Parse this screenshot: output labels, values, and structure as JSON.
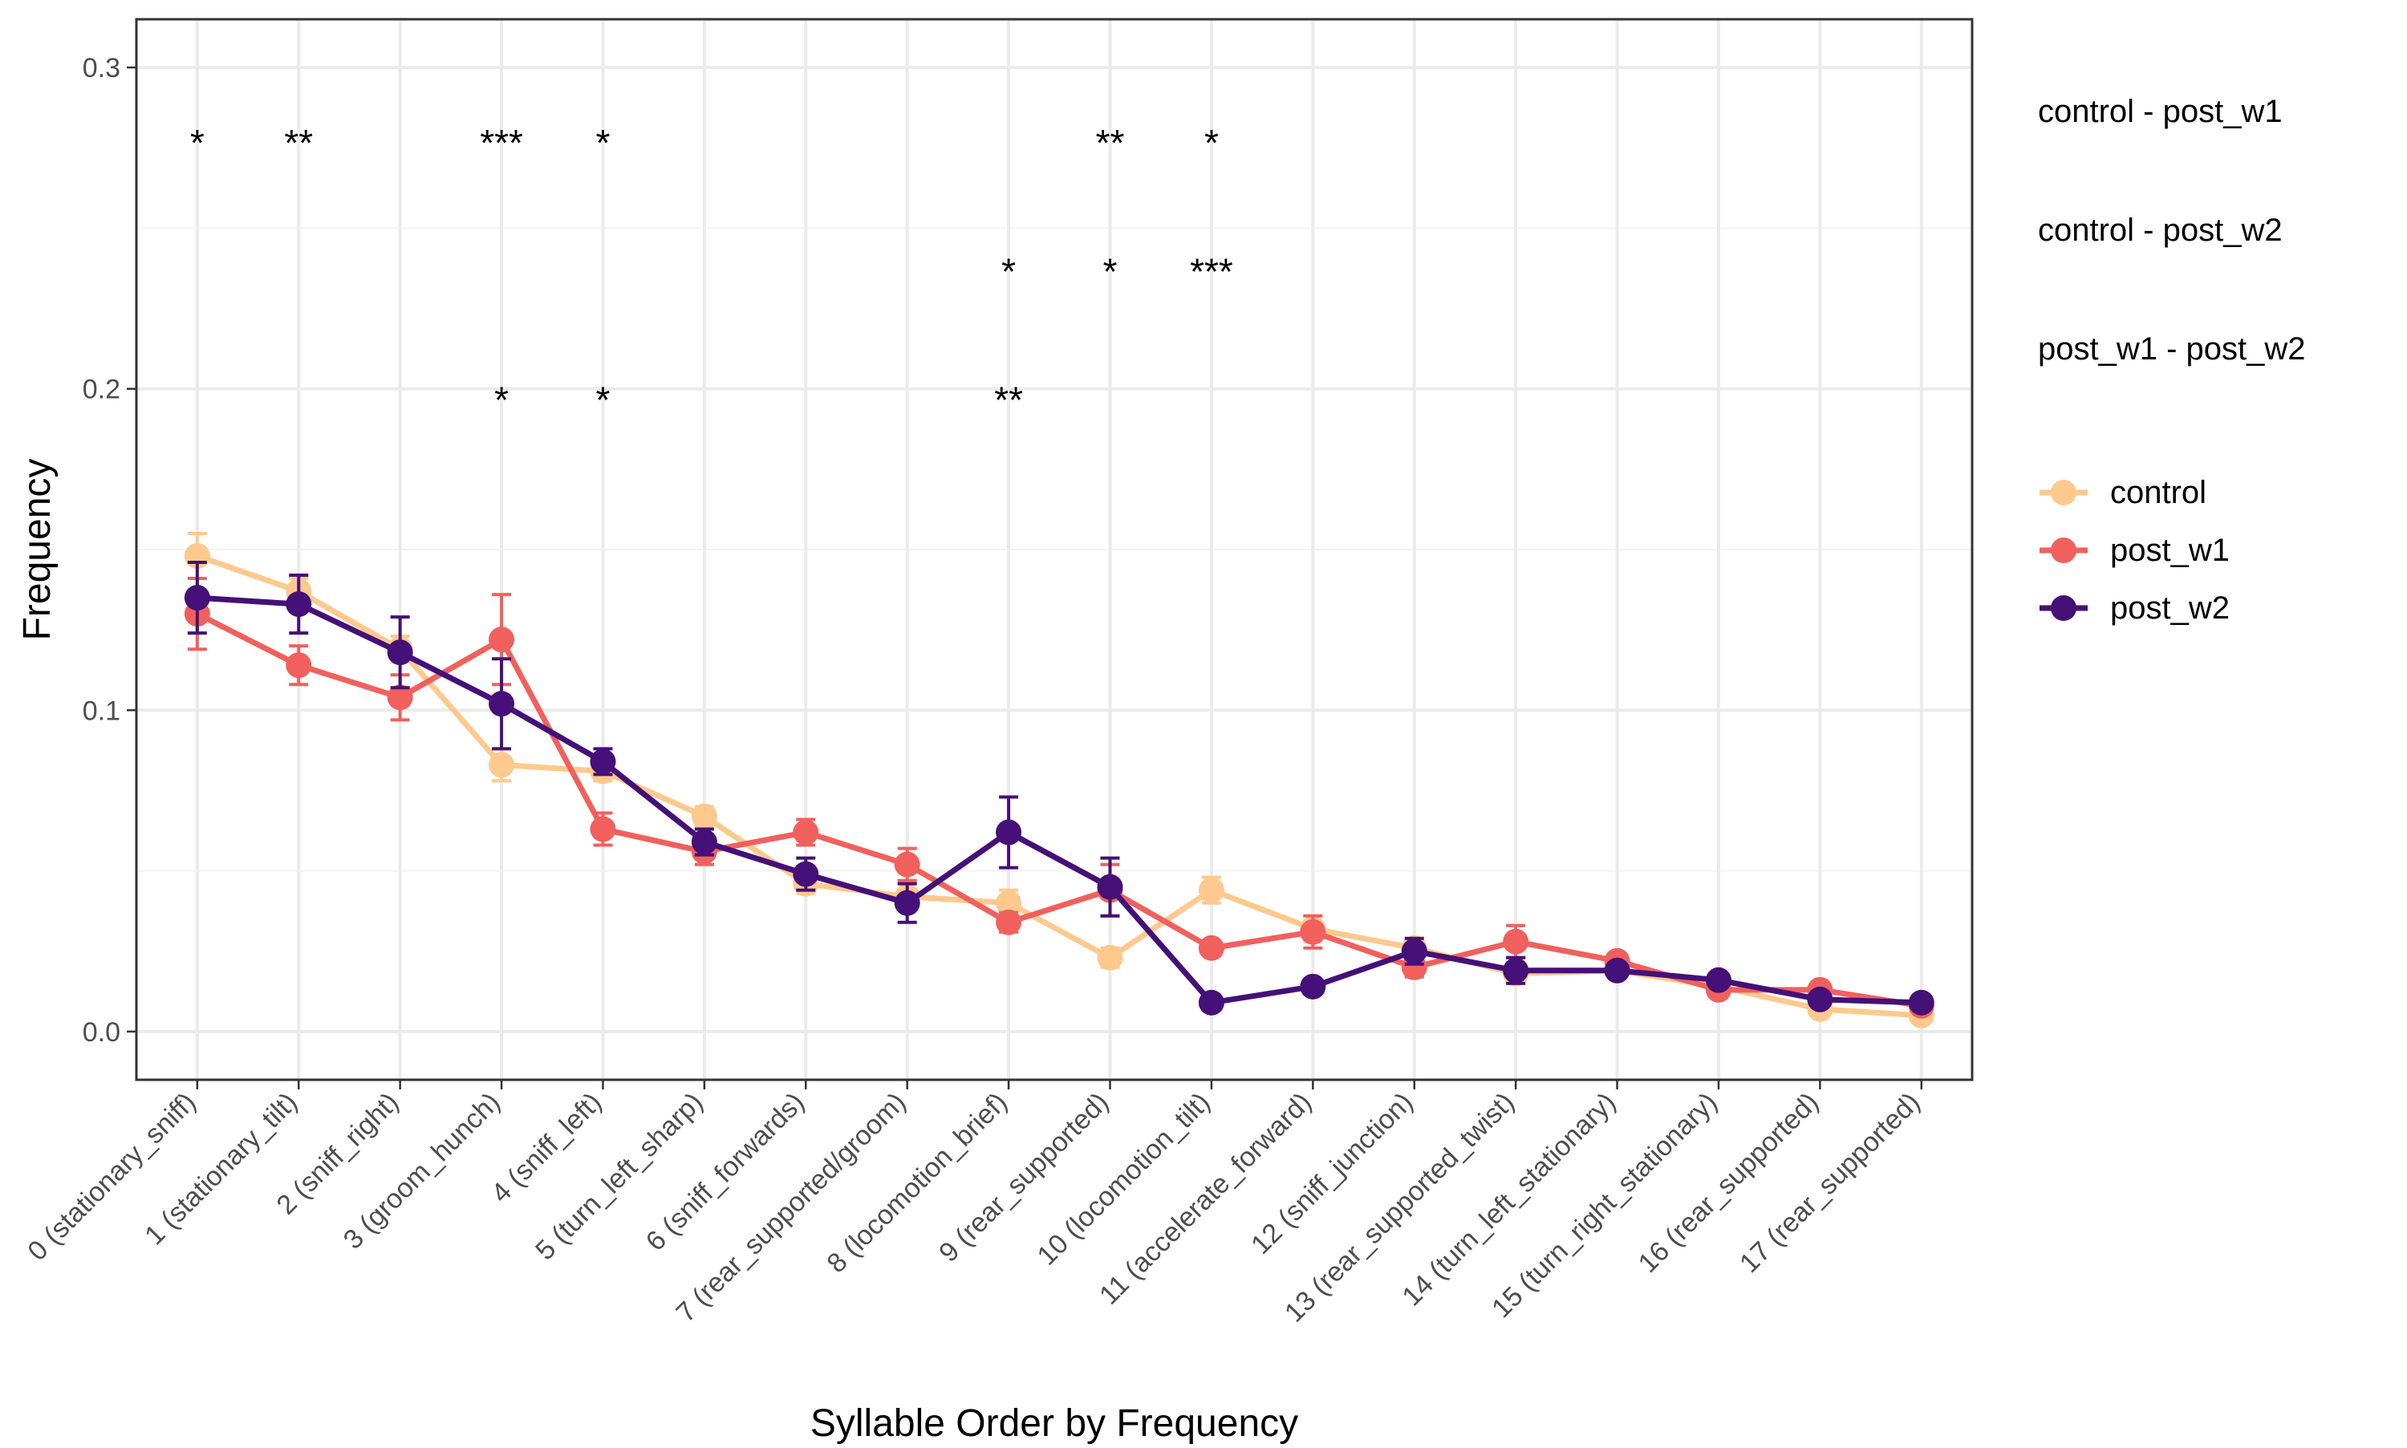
{
  "chart_data": {
    "type": "line",
    "title": "",
    "xlabel": "Syllable Order by Frequency",
    "ylabel": "Frequency",
    "ylim": [
      -0.015,
      0.315
    ],
    "yticks": [
      0.0,
      0.1,
      0.2,
      0.3
    ],
    "ytick_labels": [
      "0.0",
      "0.1",
      "0.2",
      "0.3"
    ],
    "grid": true,
    "legend_position": "right",
    "categories": [
      "0 (stationary_sniff)",
      "1 (stationary_tilt)",
      "2 (sniff_right)",
      "3 (groom_hunch)",
      "4 (sniff_left)",
      "5 (turn_left_sharp)",
      "6 (sniff_forwards)",
      "7 (rear_supported/groom)",
      "8 (locomotion_brief)",
      "9 (rear_supported)",
      "10 (locomotion_tilt)",
      "11 (accelerate_forward)",
      "12 (sniff_junction)",
      "13 (rear_supported_twist)",
      "14 (turn_left_stationary)",
      "15 (turn_right_stationary)",
      "16 (rear_supported)",
      "17 (rear_supported)"
    ],
    "series": [
      {
        "name": "control",
        "color": "#FEC98D",
        "values": [
          0.148,
          0.137,
          0.119,
          0.083,
          0.081,
          0.067,
          0.046,
          0.042,
          0.04,
          0.023,
          0.044,
          0.032,
          0.026,
          0.018,
          0.019,
          0.014,
          0.007,
          0.005
        ],
        "err": [
          0.007,
          0.004,
          0.004,
          0.005,
          0.003,
          0.003,
          0.003,
          0.002,
          0.004,
          0.003,
          0.004,
          0.004,
          0.002,
          0.002,
          0.001,
          0.001,
          0.002,
          0.001
        ]
      },
      {
        "name": "post_w1",
        "color": "#F1605D",
        "values": [
          0.13,
          0.114,
          0.104,
          0.122,
          0.063,
          0.056,
          0.062,
          0.052,
          0.034,
          0.044,
          0.026,
          0.031,
          0.02,
          0.028,
          0.022,
          0.013,
          0.013,
          0.008
        ],
        "err": [
          0.011,
          0.006,
          0.007,
          0.014,
          0.005,
          0.004,
          0.004,
          0.005,
          0.003,
          0.008,
          0.002,
          0.005,
          0.003,
          0.005,
          0.002,
          0.002,
          0.002,
          0.001
        ]
      },
      {
        "name": "post_w2",
        "color": "#451077",
        "values": [
          0.135,
          0.133,
          0.118,
          0.102,
          0.084,
          0.059,
          0.049,
          0.04,
          0.062,
          0.045,
          0.009,
          0.014,
          0.025,
          0.019,
          0.019,
          0.016,
          0.01,
          0.009
        ],
        "err": [
          0.011,
          0.009,
          0.011,
          0.014,
          0.004,
          0.004,
          0.005,
          0.006,
          0.011,
          0.009,
          0.001,
          0.002,
          0.004,
          0.004,
          0.002,
          0.002,
          0.002,
          0.001
        ]
      }
    ],
    "significance": {
      "rows": [
        {
          "label": "control - post_w1",
          "y": 0.28,
          "marks": [
            {
              "category_index": 0,
              "text": "*"
            },
            {
              "category_index": 1,
              "text": "**"
            },
            {
              "category_index": 3,
              "text": "***"
            },
            {
              "category_index": 4,
              "text": "*"
            },
            {
              "category_index": 9,
              "text": "**"
            },
            {
              "category_index": 10,
              "text": "*"
            }
          ]
        },
        {
          "label": "control - post_w2",
          "y": 0.24,
          "marks": [
            {
              "category_index": 8,
              "text": "*"
            },
            {
              "category_index": 9,
              "text": "*"
            },
            {
              "category_index": 10,
              "text": "***"
            }
          ]
        },
        {
          "label": "post_w1 - post_w2",
          "y": 0.2,
          "marks": [
            {
              "category_index": 3,
              "text": "*"
            },
            {
              "category_index": 4,
              "text": "*"
            },
            {
              "category_index": 8,
              "text": "**"
            }
          ]
        }
      ]
    }
  }
}
